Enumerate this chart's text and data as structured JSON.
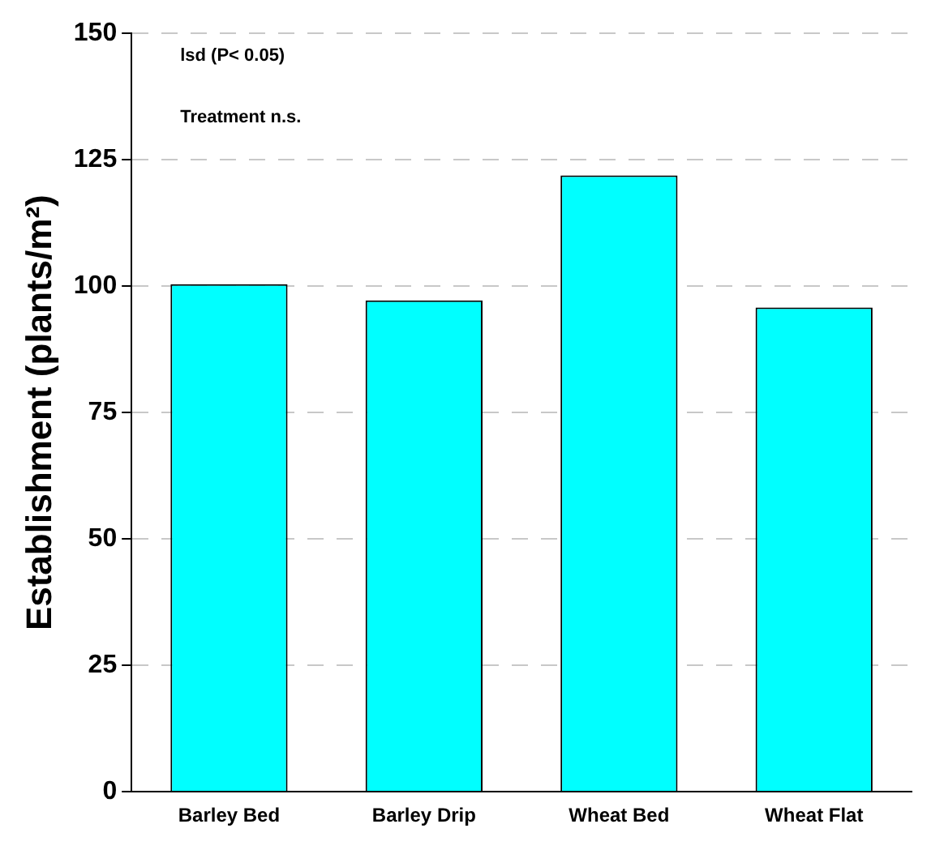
{
  "chart_data": {
    "type": "bar",
    "ylabel": "Establishment (plants/m²)",
    "categories": [
      "Barley Bed",
      "Barley Drip",
      "Wheat Bed",
      "Wheat Flat"
    ],
    "values": [
      100.4,
      97.2,
      121.9,
      95.8
    ],
    "color": "#00ffff",
    "ylim": [
      0,
      150
    ],
    "yticks": [
      0,
      25,
      50,
      75,
      100,
      125,
      150
    ],
    "grid": "y",
    "annotations": [
      "lsd (P< 0.05)",
      "Treatment n.s."
    ]
  }
}
